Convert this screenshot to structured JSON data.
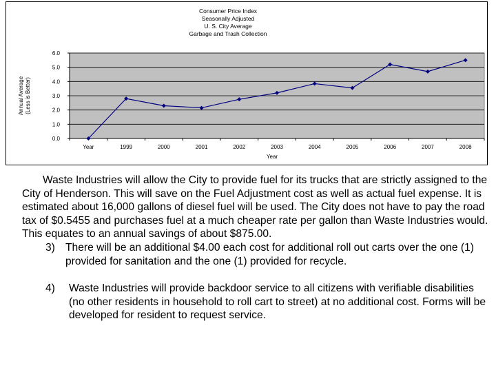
{
  "chart_data": {
    "type": "line",
    "title_lines": [
      "Consumer Price Index",
      "Seasonally Adjusted",
      "U. S. City Average",
      "Garbage and Trash Collection"
    ],
    "ylabel_lines": [
      "Annual Average",
      "(Less is Better)"
    ],
    "xlabel": "Year",
    "categories": [
      "Year",
      "1999",
      "2000",
      "2001",
      "2002",
      "2003",
      "2004",
      "2005",
      "2006",
      "2007",
      "2008"
    ],
    "values": [
      0.0,
      2.8,
      2.3,
      2.15,
      2.75,
      3.2,
      3.85,
      3.55,
      5.2,
      4.7,
      5.5
    ],
    "ylim": [
      0,
      6
    ],
    "y_ticks": [
      "0.0",
      "1.0",
      "2.0",
      "3.0",
      "4.0",
      "5.0",
      "6.0"
    ],
    "grid": true,
    "colors": {
      "plot_background": "#c0c0c0",
      "line": "#000080",
      "gridline": "#000000"
    }
  },
  "text": {
    "paragraph": "Waste Industries will allow the City to provide fuel for its trucks that are strictly assigned to the City of Henderson.  This will save on the Fuel Adjustment cost as well as actual fuel expense. It is estimated about 16,000 gallons of diesel fuel will be used.  The City does not have to pay the road tax of $0.5455 and purchases fuel at a much cheaper rate per gallon than Waste Industries would.  This equates to an annual savings of about $875.00.",
    "item3_number": "3)",
    "item3_text": "There will be an additional $4.00 each cost for additional roll out carts over the one (1) provided for sanitation and the one (1) provided for recycle.",
    "item4_number": "4)",
    "item4_text": "Waste Industries will provide backdoor service to all citizens with verifiable disabilities (no other residents in household to roll cart to street) at no additional cost. Forms will be developed for resident to request service."
  }
}
